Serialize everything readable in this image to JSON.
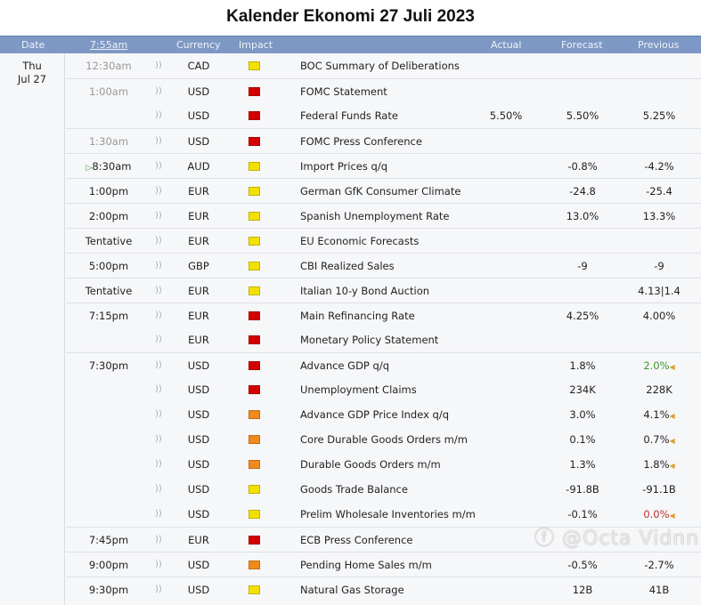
{
  "title": "Kalender Ekonomi 27 Juli 2023",
  "header": {
    "date": "Date",
    "time": "7:55am",
    "currency": "Currency",
    "impact": "Impact",
    "actual": "Actual",
    "forecast": "Forecast",
    "previous": "Previous"
  },
  "date": {
    "day": "Thu",
    "date": "Jul 27"
  },
  "colors": {
    "high": "#d40000",
    "medium": "#f08a1c",
    "low": "#f2e000",
    "header": "#7d98c4",
    "green": "#3a9a2a",
    "red": "#c03030"
  },
  "rows": [
    {
      "time": "12:30am",
      "past": true,
      "cur": "CAD",
      "impact": "low",
      "event": "BOC Summary of Deliberations",
      "actual": "",
      "forecast": "",
      "previous": ""
    },
    {
      "time": "1:00am",
      "past": true,
      "cur": "USD",
      "impact": "high",
      "event": "FOMC Statement",
      "actual": "",
      "forecast": "",
      "previous": ""
    },
    {
      "time": "",
      "cur": "USD",
      "impact": "high",
      "event": "Federal Funds Rate",
      "actual": "5.50%",
      "forecast": "5.50%",
      "previous": "5.25%"
    },
    {
      "time": "1:30am",
      "past": true,
      "cur": "USD",
      "impact": "high",
      "event": "FOMC Press Conference",
      "actual": "",
      "forecast": "",
      "previous": ""
    },
    {
      "time": "8:30am",
      "next": true,
      "cur": "AUD",
      "impact": "low",
      "event": "Import Prices q/q",
      "actual": "",
      "forecast": "-0.8%",
      "previous": "-4.2%"
    },
    {
      "time": "1:00pm",
      "cur": "EUR",
      "impact": "low",
      "event": "German GfK Consumer Climate",
      "actual": "",
      "forecast": "-24.8",
      "previous": "-25.4"
    },
    {
      "time": "2:00pm",
      "cur": "EUR",
      "impact": "low",
      "event": "Spanish Unemployment Rate",
      "actual": "",
      "forecast": "13.0%",
      "previous": "13.3%"
    },
    {
      "time": "Tentative",
      "cur": "EUR",
      "impact": "low",
      "event": "EU Economic Forecasts",
      "actual": "",
      "forecast": "",
      "previous": ""
    },
    {
      "time": "5:00pm",
      "cur": "GBP",
      "impact": "low",
      "event": "CBI Realized Sales",
      "actual": "",
      "forecast": "-9",
      "previous": "-9"
    },
    {
      "time": "Tentative",
      "cur": "EUR",
      "impact": "low",
      "event": "Italian 10-y Bond Auction",
      "actual": "",
      "forecast": "",
      "previous": "4.13|1.4"
    },
    {
      "time": "7:15pm",
      "cur": "EUR",
      "impact": "high",
      "event": "Main Refinancing Rate",
      "actual": "",
      "forecast": "4.25%",
      "previous": "4.00%"
    },
    {
      "time": "",
      "cur": "EUR",
      "impact": "high",
      "event": "Monetary Policy Statement",
      "actual": "",
      "forecast": "",
      "previous": ""
    },
    {
      "time": "7:30pm",
      "cur": "USD",
      "impact": "high",
      "event": "Advance GDP q/q",
      "actual": "",
      "forecast": "1.8%",
      "previous": "2.0%",
      "prevColor": "green",
      "rev": true
    },
    {
      "time": "",
      "cur": "USD",
      "impact": "high",
      "event": "Unemployment Claims",
      "actual": "",
      "forecast": "234K",
      "previous": "228K"
    },
    {
      "time": "",
      "cur": "USD",
      "impact": "medium",
      "event": "Advance GDP Price Index q/q",
      "actual": "",
      "forecast": "3.0%",
      "previous": "4.1%",
      "rev": true
    },
    {
      "time": "",
      "cur": "USD",
      "impact": "medium",
      "event": "Core Durable Goods Orders m/m",
      "actual": "",
      "forecast": "0.1%",
      "previous": "0.7%",
      "rev": true
    },
    {
      "time": "",
      "cur": "USD",
      "impact": "medium",
      "event": "Durable Goods Orders m/m",
      "actual": "",
      "forecast": "1.3%",
      "previous": "1.8%",
      "rev": true
    },
    {
      "time": "",
      "cur": "USD",
      "impact": "low",
      "event": "Goods Trade Balance",
      "actual": "",
      "forecast": "-91.8B",
      "previous": "-91.1B"
    },
    {
      "time": "",
      "cur": "USD",
      "impact": "low",
      "event": "Prelim Wholesale Inventories m/m",
      "actual": "",
      "forecast": "-0.1%",
      "previous": "0.0%",
      "prevColor": "red",
      "rev": true
    },
    {
      "time": "7:45pm",
      "cur": "EUR",
      "impact": "high",
      "event": "ECB Press Conference",
      "actual": "",
      "forecast": "",
      "previous": ""
    },
    {
      "time": "9:00pm",
      "cur": "USD",
      "impact": "medium",
      "event": "Pending Home Sales m/m",
      "actual": "",
      "forecast": "-0.5%",
      "previous": "-2.7%"
    },
    {
      "time": "9:30pm",
      "cur": "USD",
      "impact": "low",
      "event": "Natural Gas Storage",
      "actual": "",
      "forecast": "12B",
      "previous": "41B"
    }
  ],
  "watermark": "@Octa Vidnn"
}
